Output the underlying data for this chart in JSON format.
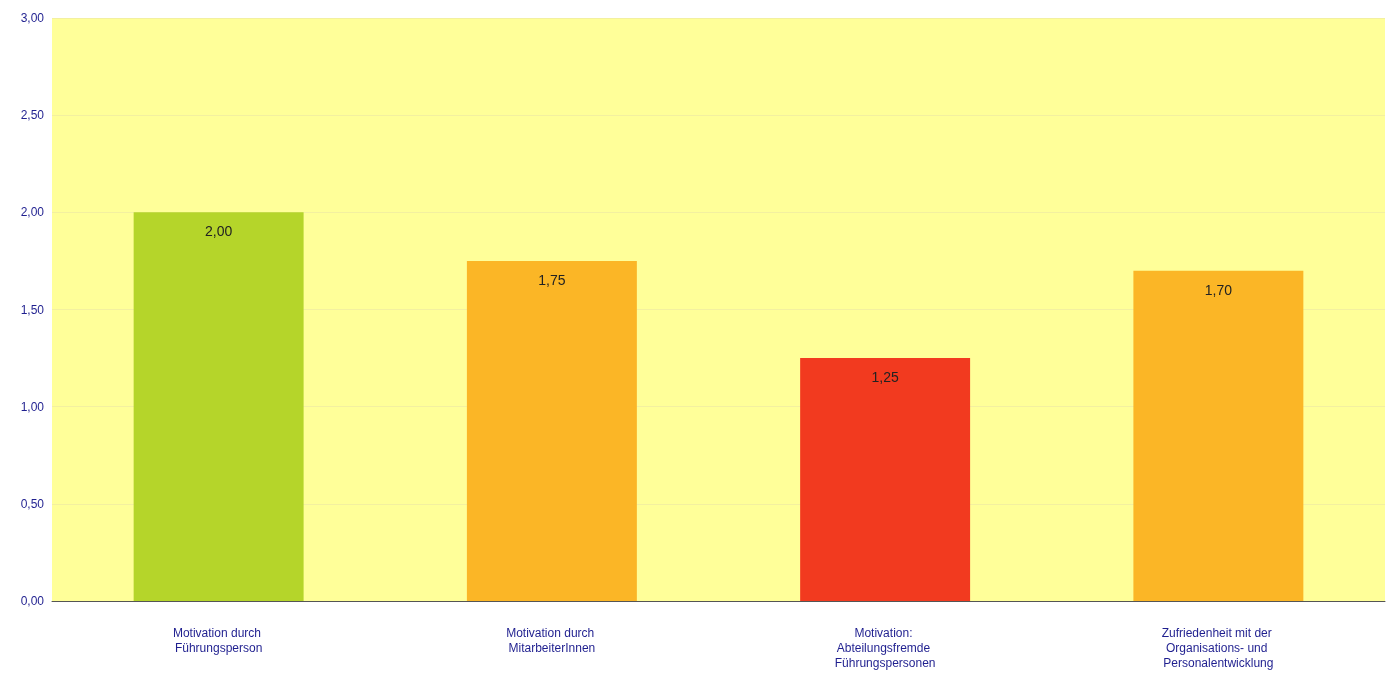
{
  "chart_data": {
    "type": "bar",
    "categories": [
      "Motivation durch Führungsperson",
      "Motivation durch MitarbeiterInnen",
      "Motivation: Abteilungsfremde Führungspersonen",
      "Zufriedenheit mit der Organisations- und Personalentwicklung"
    ],
    "values": [
      2.0,
      1.75,
      1.25,
      1.7
    ],
    "colors": [
      "#b5d52a",
      "#fbb626",
      "#f23a1f",
      "#fbb626"
    ],
    "value_labels": [
      "2,00",
      "1,75",
      "1,25",
      "1,70"
    ],
    "ylim": [
      0,
      3
    ],
    "yticks": [
      {
        "value": 0,
        "label": "0,00"
      },
      {
        "value": 0.5,
        "label": "0,50"
      },
      {
        "value": 1,
        "label": "1,00"
      },
      {
        "value": 1.5,
        "label": "1,50"
      },
      {
        "value": 2,
        "label": "2,00"
      },
      {
        "value": 2.5,
        "label": "2,50"
      },
      {
        "value": 3,
        "label": "3,00"
      }
    ],
    "grid": "y"
  }
}
